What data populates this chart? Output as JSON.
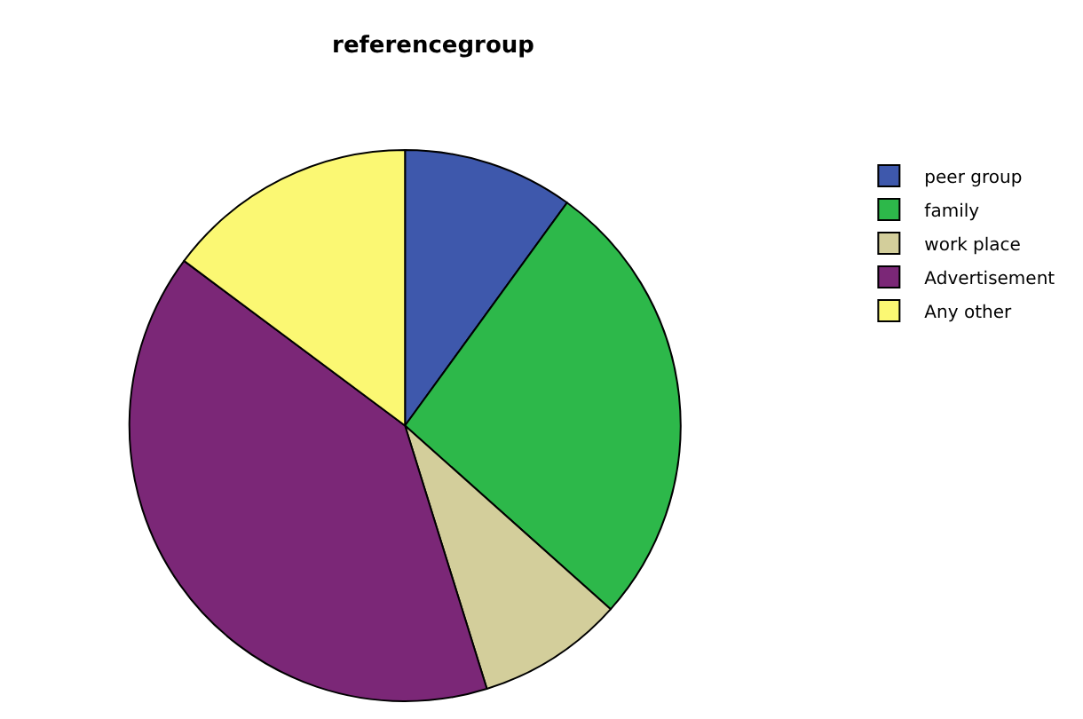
{
  "chart_data": {
    "type": "pie",
    "title": "referencegroup",
    "categories": [
      "peer group",
      "family",
      "work place",
      "Advertisement",
      "Any other"
    ],
    "values": [
      10,
      26.6,
      8.6,
      40,
      14.8
    ],
    "colors": [
      "#3e58ac",
      "#2db84a",
      "#d3ce9b",
      "#7b2777",
      "#fbf873"
    ],
    "legend": "top right"
  }
}
